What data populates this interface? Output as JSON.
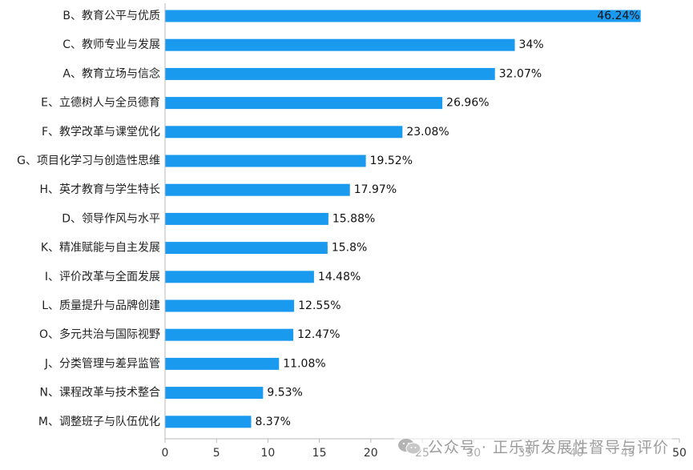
{
  "chart_data": {
    "type": "bar",
    "orientation": "horizontal",
    "categories": [
      "B、教育公平与优质",
      "C、教师专业与发展",
      "A、教育立场与信念",
      "E、立德树人与全员德育",
      "F、教学改革与课堂优化",
      "G、项目化学习与创造性思维",
      "H、英才教育与学生特长",
      "D、领导作风与水平",
      "K、精准赋能与自主发展",
      "I、评价改革与全面发展",
      "L、质量提升与品牌创建",
      "O、多元共治与国际视野",
      "J、分类管理与差异监管",
      "N、课程改革与技术整合",
      "M、调整班子与队伍优化"
    ],
    "values": [
      46.24,
      34,
      32.07,
      26.96,
      23.08,
      19.52,
      17.97,
      15.88,
      15.8,
      14.48,
      12.55,
      12.47,
      11.08,
      9.53,
      8.37
    ],
    "value_labels": [
      "46.24%",
      "34%",
      "32.07%",
      "26.96%",
      "23.08%",
      "19.52%",
      "17.97%",
      "15.88%",
      "15.8%",
      "14.48%",
      "12.55%",
      "12.47%",
      "11.08%",
      "9.53%",
      "8.37%"
    ],
    "xlim": [
      0,
      50
    ],
    "xticks": [
      0,
      5,
      10,
      15,
      20,
      25,
      30,
      35,
      40,
      45,
      50
    ],
    "grid": false,
    "bar_color": "#1a9aef",
    "axis_color": "#b8b8b8"
  },
  "watermark": {
    "text": "公众号 · 正乐新发展性督导与评价",
    "icon": "wechat-icon",
    "color": "#9c9c9c"
  }
}
